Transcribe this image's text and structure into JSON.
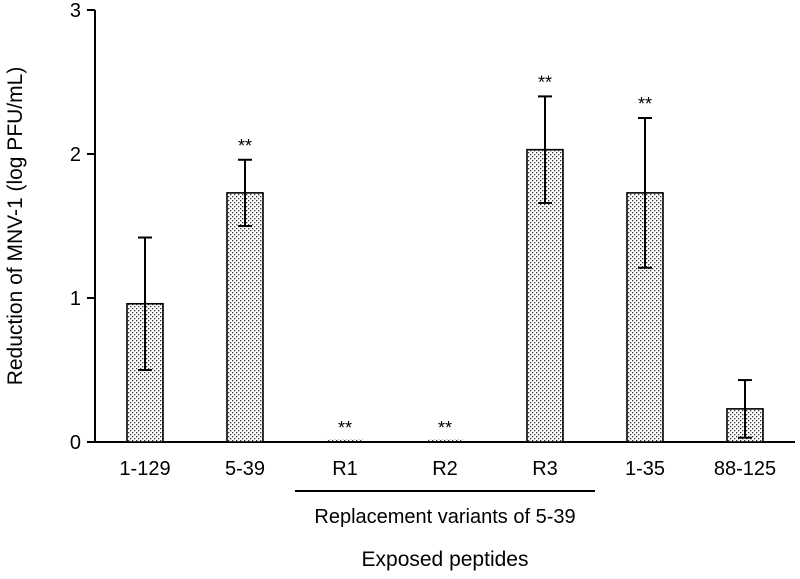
{
  "chart_data": {
    "type": "bar",
    "title": "",
    "xlabel": "Exposed peptides",
    "ylabel": "Reduction of MNV-1 (log PFU/mL)",
    "ylim": [
      0,
      3
    ],
    "yticks": [
      "0",
      "1",
      "2",
      "3"
    ],
    "grid": false,
    "legend": "none",
    "bar_fill": "stippled",
    "colors": {
      "bar_fill": "#ffffff",
      "stipple": "#333333",
      "stroke": "#000000"
    },
    "categories": [
      "1-129",
      "5-39",
      "R1",
      "R2",
      "R3",
      "1-35",
      "88-125"
    ],
    "values": [
      0.96,
      1.73,
      0.0,
      0.0,
      2.03,
      1.73,
      0.23
    ],
    "errors": [
      0.46,
      0.23,
      0.0,
      0.0,
      0.37,
      0.52,
      0.2
    ],
    "significance": [
      "",
      "**",
      "**",
      "**",
      "**",
      "**",
      ""
    ],
    "group_bracket": {
      "label": "Replacement variants of 5-39",
      "categories": [
        "R1",
        "R2",
        "R3"
      ]
    }
  }
}
